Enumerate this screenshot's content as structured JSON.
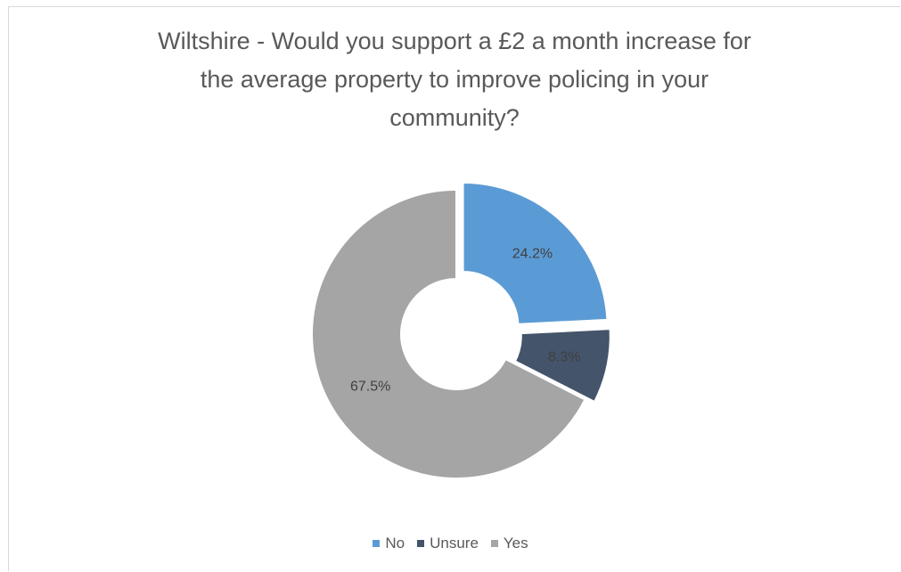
{
  "chart_data": {
    "type": "pie",
    "variant": "doughnut",
    "title_lines": [
      "Wiltshire - Would you support a £2 a month increase for",
      "the average property to improve policing in your",
      "community?"
    ],
    "slices": [
      {
        "name": "No",
        "value": 24.2,
        "label": "24.2%",
        "color": "#5B9BD5",
        "exploded": true
      },
      {
        "name": "Unsure",
        "value": 8.3,
        "label": "8.3%",
        "color": "#44546A",
        "exploded": true
      },
      {
        "name": "Yes",
        "value": 67.5,
        "label": "67.5%",
        "color": "#A5A5A5",
        "exploded": false
      }
    ],
    "legend_position": "bottom",
    "data_label_color": "#404040",
    "slice_border_color": "#ffffff"
  }
}
